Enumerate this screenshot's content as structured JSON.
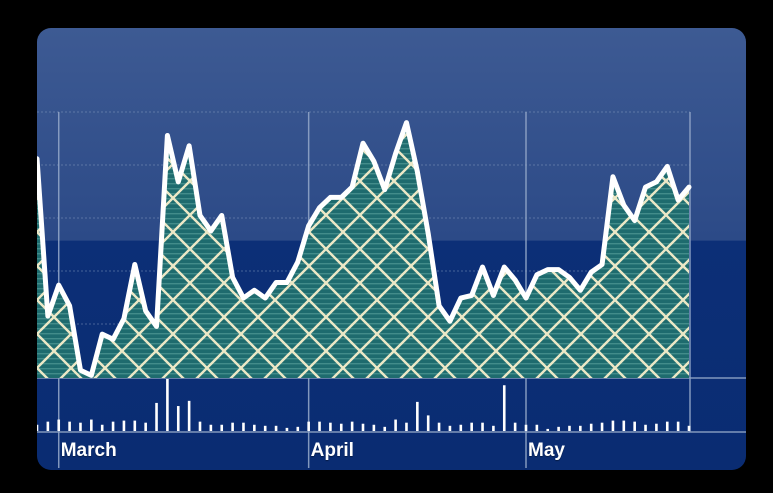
{
  "chart_data": {
    "type": "area",
    "x_labels": [
      "March",
      "April",
      "May"
    ],
    "x_label_indices": [
      2,
      25,
      45
    ],
    "series": [
      {
        "values": [
          0.85,
          0.24,
          0.36,
          0.28,
          0.03,
          0.01,
          0.17,
          0.15,
          0.23,
          0.44,
          0.26,
          0.2,
          0.94,
          0.76,
          0.9,
          0.63,
          0.57,
          0.63,
          0.39,
          0.31,
          0.34,
          0.31,
          0.37,
          0.37,
          0.45,
          0.59,
          0.66,
          0.7,
          0.7,
          0.74,
          0.91,
          0.84,
          0.73,
          0.87,
          0.99,
          0.8,
          0.56,
          0.28,
          0.22,
          0.31,
          0.32,
          0.43,
          0.32,
          0.43,
          0.38,
          0.31,
          0.4,
          0.42,
          0.42,
          0.39,
          0.34,
          0.41,
          0.44,
          0.78,
          0.67,
          0.61,
          0.74,
          0.76,
          0.82,
          0.69,
          0.74
        ]
      },
      {
        "type": "bar",
        "values": [
          0.12,
          0.18,
          0.22,
          0.18,
          0.16,
          0.22,
          0.12,
          0.18,
          0.2,
          0.2,
          0.16,
          0.54,
          1.0,
          0.48,
          0.58,
          0.18,
          0.12,
          0.12,
          0.16,
          0.16,
          0.12,
          0.1,
          0.1,
          0.06,
          0.08,
          0.18,
          0.18,
          0.16,
          0.14,
          0.18,
          0.14,
          0.12,
          0.08,
          0.22,
          0.16,
          0.56,
          0.3,
          0.16,
          0.1,
          0.12,
          0.16,
          0.16,
          0.1,
          0.88,
          0.16,
          0.12,
          0.12,
          0.04,
          0.08,
          0.1,
          0.1,
          0.14,
          0.16,
          0.2,
          0.2,
          0.18,
          0.12,
          0.14,
          0.18,
          0.18,
          0.1
        ]
      }
    ],
    "grid": true,
    "colors": {
      "line": "#ffffff",
      "area_fill": "#1e6d6f",
      "area_hatch": "#e9e6c4",
      "panel_top": "#34518c",
      "panel_bottom": "#0c2f77",
      "grid": "#8fa4c6"
    }
  }
}
